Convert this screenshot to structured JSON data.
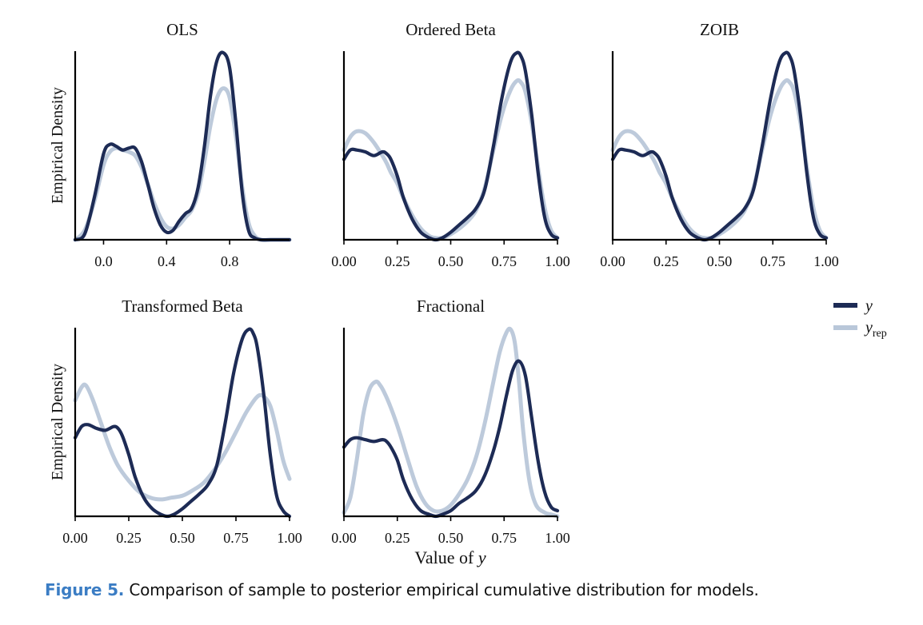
{
  "figure": {
    "caption_label": "Figure 5.",
    "caption_text": " Comparison of sample to posterior empirical cumulative distribution for models.",
    "xlabel_prefix": "Value of ",
    "xlabel_var": "y",
    "legend": {
      "y": "y",
      "yrep_main": "y",
      "yrep_sub": "rep"
    },
    "colors": {
      "y": "#1d2b55",
      "yrep": "#b9c7d9"
    }
  },
  "chart_data": [
    {
      "type": "line",
      "title": "OLS",
      "ylabel": "Empirical Density",
      "xlim": [
        -0.18,
        1.18
      ],
      "ylim": [
        0,
        1
      ],
      "xticks": [
        0.0,
        0.4,
        0.8
      ],
      "xtick_labels": [
        "0.0",
        "0.4",
        "0.8"
      ],
      "series": [
        {
          "name": "y",
          "x": [
            -0.18,
            -0.12,
            -0.06,
            0.0,
            0.04,
            0.08,
            0.12,
            0.16,
            0.2,
            0.24,
            0.28,
            0.32,
            0.36,
            0.4,
            0.44,
            0.48,
            0.52,
            0.56,
            0.6,
            0.64,
            0.68,
            0.72,
            0.76,
            0.8,
            0.84,
            0.88,
            0.92,
            0.96,
            1.0,
            1.06,
            1.18
          ],
          "y": [
            0.0,
            0.03,
            0.22,
            0.46,
            0.51,
            0.5,
            0.48,
            0.49,
            0.49,
            0.42,
            0.3,
            0.17,
            0.08,
            0.04,
            0.05,
            0.1,
            0.14,
            0.17,
            0.28,
            0.5,
            0.78,
            0.96,
            1.0,
            0.92,
            0.62,
            0.25,
            0.05,
            0.01,
            0.0,
            0.0,
            0.0
          ]
        },
        {
          "name": "yrep",
          "x": [
            -0.18,
            -0.12,
            -0.06,
            0.0,
            0.04,
            0.08,
            0.12,
            0.16,
            0.2,
            0.24,
            0.28,
            0.32,
            0.36,
            0.4,
            0.44,
            0.48,
            0.52,
            0.56,
            0.6,
            0.64,
            0.68,
            0.72,
            0.76,
            0.8,
            0.84,
            0.88,
            0.92,
            0.96,
            1.0,
            1.06,
            1.18
          ],
          "y": [
            0.0,
            0.05,
            0.2,
            0.4,
            0.47,
            0.49,
            0.48,
            0.47,
            0.45,
            0.39,
            0.3,
            0.2,
            0.12,
            0.07,
            0.06,
            0.08,
            0.12,
            0.16,
            0.25,
            0.42,
            0.62,
            0.76,
            0.81,
            0.76,
            0.55,
            0.28,
            0.09,
            0.02,
            0.0,
            0.0,
            0.0
          ]
        }
      ]
    },
    {
      "type": "line",
      "title": "Ordered Beta",
      "ylabel": "",
      "xlim": [
        0,
        1
      ],
      "ylim": [
        0,
        1
      ],
      "xticks": [
        0.0,
        0.25,
        0.5,
        0.75,
        1.0
      ],
      "xtick_labels": [
        "0.00",
        "0.25",
        "0.50",
        "0.75",
        "1.00"
      ],
      "series": [
        {
          "name": "y",
          "x": [
            0.0,
            0.03,
            0.06,
            0.1,
            0.14,
            0.18,
            0.2,
            0.22,
            0.25,
            0.28,
            0.32,
            0.36,
            0.4,
            0.43,
            0.46,
            0.5,
            0.54,
            0.58,
            0.62,
            0.66,
            0.7,
            0.74,
            0.78,
            0.81,
            0.83,
            0.85,
            0.88,
            0.91,
            0.94,
            0.97,
            1.0
          ],
          "y": [
            0.43,
            0.48,
            0.48,
            0.47,
            0.45,
            0.47,
            0.46,
            0.43,
            0.34,
            0.22,
            0.11,
            0.04,
            0.01,
            0.0,
            0.01,
            0.04,
            0.08,
            0.12,
            0.17,
            0.27,
            0.5,
            0.76,
            0.95,
            1.0,
            0.98,
            0.9,
            0.66,
            0.35,
            0.12,
            0.03,
            0.01
          ]
        },
        {
          "name": "yrep",
          "x": [
            0.0,
            0.03,
            0.06,
            0.1,
            0.14,
            0.18,
            0.2,
            0.22,
            0.25,
            0.28,
            0.32,
            0.36,
            0.4,
            0.43,
            0.46,
            0.5,
            0.54,
            0.58,
            0.62,
            0.66,
            0.7,
            0.74,
            0.78,
            0.81,
            0.83,
            0.85,
            0.88,
            0.91,
            0.94,
            0.97,
            1.0
          ],
          "y": [
            0.48,
            0.55,
            0.58,
            0.57,
            0.52,
            0.45,
            0.41,
            0.36,
            0.3,
            0.22,
            0.13,
            0.06,
            0.02,
            0.01,
            0.01,
            0.03,
            0.06,
            0.1,
            0.16,
            0.28,
            0.48,
            0.67,
            0.8,
            0.85,
            0.84,
            0.79,
            0.62,
            0.38,
            0.17,
            0.05,
            0.01
          ]
        }
      ]
    },
    {
      "type": "line",
      "title": "ZOIB",
      "ylabel": "",
      "xlim": [
        0,
        1
      ],
      "ylim": [
        0,
        1
      ],
      "xticks": [
        0.0,
        0.25,
        0.5,
        0.75,
        1.0
      ],
      "xtick_labels": [
        "0.00",
        "0.25",
        "0.50",
        "0.75",
        "1.00"
      ],
      "series": [
        {
          "name": "y",
          "x": [
            0.0,
            0.03,
            0.06,
            0.1,
            0.14,
            0.18,
            0.2,
            0.22,
            0.25,
            0.28,
            0.32,
            0.36,
            0.4,
            0.43,
            0.46,
            0.5,
            0.54,
            0.58,
            0.62,
            0.66,
            0.7,
            0.74,
            0.78,
            0.81,
            0.83,
            0.85,
            0.88,
            0.91,
            0.94,
            0.97,
            1.0
          ],
          "y": [
            0.43,
            0.48,
            0.48,
            0.47,
            0.45,
            0.47,
            0.46,
            0.43,
            0.34,
            0.22,
            0.11,
            0.04,
            0.01,
            0.0,
            0.01,
            0.04,
            0.08,
            0.12,
            0.17,
            0.27,
            0.5,
            0.76,
            0.95,
            1.0,
            0.98,
            0.9,
            0.66,
            0.35,
            0.12,
            0.03,
            0.01
          ]
        },
        {
          "name": "yrep",
          "x": [
            0.0,
            0.03,
            0.06,
            0.1,
            0.14,
            0.18,
            0.2,
            0.22,
            0.25,
            0.28,
            0.32,
            0.36,
            0.4,
            0.43,
            0.46,
            0.5,
            0.54,
            0.58,
            0.62,
            0.66,
            0.7,
            0.74,
            0.78,
            0.81,
            0.83,
            0.85,
            0.88,
            0.91,
            0.94,
            0.97,
            1.0
          ],
          "y": [
            0.48,
            0.55,
            0.58,
            0.57,
            0.52,
            0.45,
            0.41,
            0.36,
            0.3,
            0.22,
            0.13,
            0.06,
            0.02,
            0.01,
            0.01,
            0.03,
            0.06,
            0.1,
            0.16,
            0.28,
            0.48,
            0.67,
            0.8,
            0.85,
            0.84,
            0.79,
            0.62,
            0.38,
            0.17,
            0.05,
            0.01
          ]
        }
      ]
    },
    {
      "type": "line",
      "title": "Transformed Beta",
      "ylabel": "Empirical Density",
      "xlim": [
        0,
        1
      ],
      "ylim": [
        0,
        1
      ],
      "xticks": [
        0.0,
        0.25,
        0.5,
        0.75,
        1.0
      ],
      "xtick_labels": [
        "0.00",
        "0.25",
        "0.50",
        "0.75",
        "1.00"
      ],
      "series": [
        {
          "name": "y",
          "x": [
            0.0,
            0.03,
            0.06,
            0.1,
            0.14,
            0.18,
            0.2,
            0.22,
            0.25,
            0.28,
            0.32,
            0.36,
            0.4,
            0.43,
            0.46,
            0.5,
            0.54,
            0.58,
            0.62,
            0.66,
            0.7,
            0.74,
            0.78,
            0.81,
            0.83,
            0.85,
            0.88,
            0.91,
            0.94,
            0.97,
            1.0
          ],
          "y": [
            0.42,
            0.48,
            0.49,
            0.47,
            0.46,
            0.48,
            0.47,
            0.43,
            0.33,
            0.21,
            0.1,
            0.04,
            0.01,
            0.0,
            0.01,
            0.04,
            0.08,
            0.12,
            0.17,
            0.27,
            0.5,
            0.77,
            0.95,
            1.0,
            0.98,
            0.9,
            0.65,
            0.33,
            0.11,
            0.03,
            0.0
          ]
        },
        {
          "name": "yrep",
          "x": [
            0.0,
            0.03,
            0.05,
            0.08,
            0.12,
            0.16,
            0.2,
            0.25,
            0.3,
            0.35,
            0.4,
            0.45,
            0.5,
            0.55,
            0.6,
            0.65,
            0.7,
            0.75,
            0.8,
            0.85,
            0.88,
            0.91,
            0.94,
            0.97,
            1.0
          ],
          "y": [
            0.62,
            0.69,
            0.7,
            0.63,
            0.5,
            0.37,
            0.27,
            0.19,
            0.13,
            0.1,
            0.09,
            0.1,
            0.11,
            0.14,
            0.18,
            0.25,
            0.34,
            0.45,
            0.56,
            0.64,
            0.64,
            0.59,
            0.46,
            0.3,
            0.2
          ]
        }
      ]
    },
    {
      "type": "line",
      "title": "Fractional",
      "ylabel": "",
      "xlim": [
        0,
        1
      ],
      "ylim": [
        0,
        1
      ],
      "xticks": [
        0.0,
        0.25,
        0.5,
        0.75,
        1.0
      ],
      "xtick_labels": [
        "0.00",
        "0.25",
        "0.50",
        "0.75",
        "1.00"
      ],
      "series": [
        {
          "name": "y",
          "x": [
            0.0,
            0.03,
            0.06,
            0.1,
            0.14,
            0.18,
            0.2,
            0.22,
            0.25,
            0.28,
            0.32,
            0.36,
            0.4,
            0.43,
            0.46,
            0.5,
            0.54,
            0.58,
            0.62,
            0.66,
            0.7,
            0.73,
            0.76,
            0.79,
            0.82,
            0.85,
            0.88,
            0.91,
            0.94,
            0.97,
            1.0
          ],
          "y": [
            0.37,
            0.41,
            0.42,
            0.41,
            0.4,
            0.41,
            0.4,
            0.37,
            0.3,
            0.19,
            0.09,
            0.03,
            0.01,
            0.0,
            0.01,
            0.03,
            0.07,
            0.1,
            0.14,
            0.22,
            0.35,
            0.48,
            0.64,
            0.78,
            0.83,
            0.75,
            0.52,
            0.29,
            0.13,
            0.05,
            0.03
          ]
        },
        {
          "name": "yrep",
          "x": [
            0.0,
            0.03,
            0.06,
            0.09,
            0.12,
            0.15,
            0.17,
            0.19,
            0.22,
            0.26,
            0.3,
            0.34,
            0.38,
            0.42,
            0.46,
            0.5,
            0.54,
            0.58,
            0.62,
            0.66,
            0.7,
            0.73,
            0.76,
            0.78,
            0.8,
            0.82,
            0.84,
            0.87,
            0.9,
            0.94,
            0.97,
            1.0
          ],
          "y": [
            0.02,
            0.1,
            0.3,
            0.54,
            0.68,
            0.72,
            0.7,
            0.66,
            0.58,
            0.45,
            0.3,
            0.16,
            0.07,
            0.03,
            0.03,
            0.06,
            0.12,
            0.2,
            0.32,
            0.5,
            0.72,
            0.88,
            0.98,
            1.0,
            0.93,
            0.72,
            0.45,
            0.18,
            0.06,
            0.02,
            0.01,
            0.0
          ]
        }
      ]
    }
  ]
}
